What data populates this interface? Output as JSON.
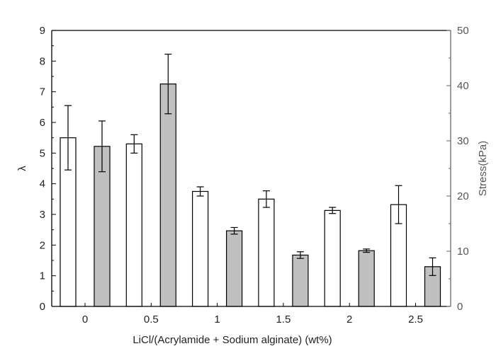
{
  "chart_data": {
    "type": "bar",
    "xlabel": "LiCl/(Acrylamide + Sodium alginate) (wt%)",
    "ylabel_left": "λ",
    "ylabel_right": "Stress(kPa)",
    "categories": [
      "0",
      "0.5",
      "1",
      "1.5",
      "2",
      "2.5"
    ],
    "ylim_left": [
      0,
      9
    ],
    "ylim_right": [
      0,
      50
    ],
    "yticks_left": [
      "0",
      "1",
      "2",
      "3",
      "4",
      "5",
      "6",
      "7",
      "8",
      "9"
    ],
    "yticks_right": [
      "0",
      "10",
      "20",
      "30",
      "40",
      "50"
    ],
    "grid": false,
    "series": [
      {
        "axis": "left",
        "fill": "#ffffff",
        "values": [
          5.5,
          5.3,
          3.75,
          3.5,
          3.13,
          3.32
        ],
        "errors": [
          1.05,
          0.3,
          0.15,
          0.27,
          0.1,
          0.62
        ]
      },
      {
        "axis": "right",
        "fill": "#c0c0c0",
        "values": [
          29.0,
          40.3,
          13.7,
          9.3,
          10.1,
          7.2
        ],
        "errors": [
          4.6,
          5.4,
          0.6,
          0.6,
          0.3,
          1.6
        ]
      }
    ]
  }
}
